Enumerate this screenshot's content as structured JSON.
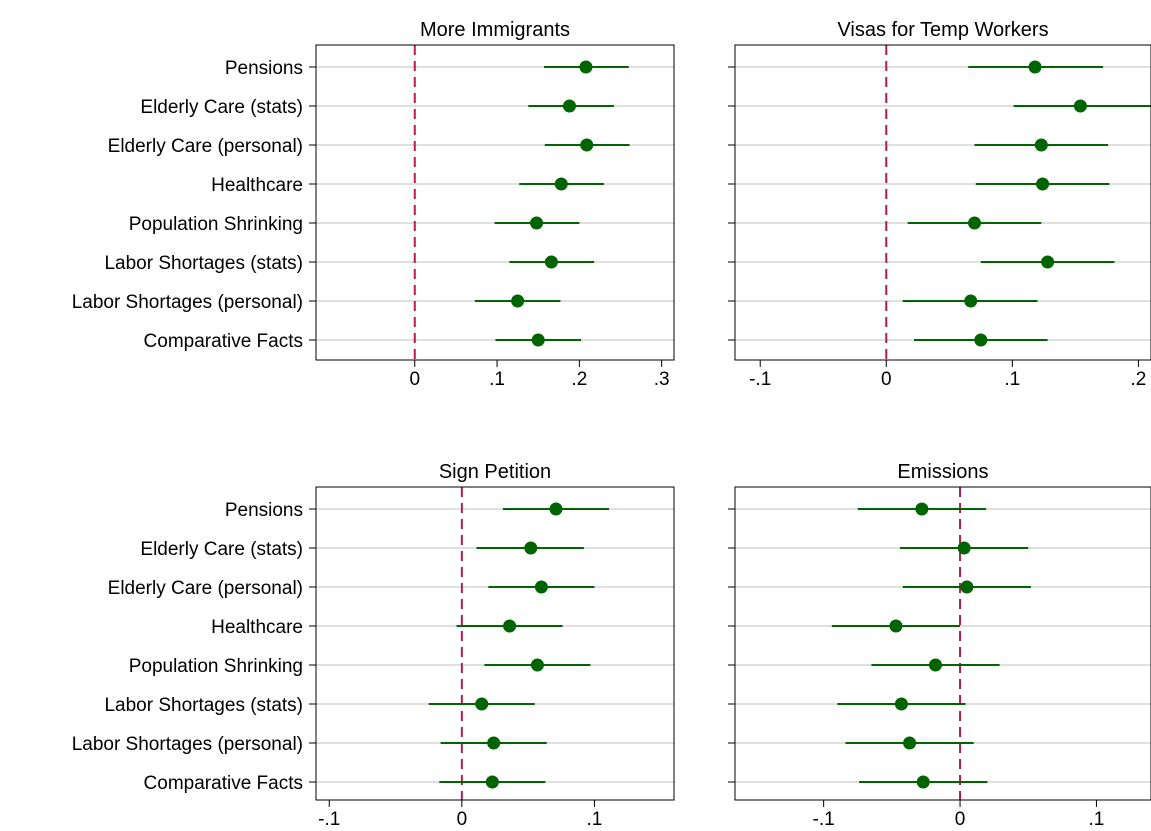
{
  "chart_data": {
    "type": "scatter",
    "categories": [
      "Pensions",
      "Elderly Care (stats)",
      "Elderly Care (personal)",
      "Healthcare",
      "Population Shrinking",
      "Labor Shortages (stats)",
      "Labor Shortages (personal)",
      "Comparative Facts"
    ],
    "colors": {
      "point": "#006400",
      "ci": "#006400",
      "reference_line": "#b01e4e",
      "grid": "#e0e0e0"
    },
    "panels": [
      {
        "title": "More Immigrants",
        "xlim": [
          -0.12,
          0.315
        ],
        "xticks": [
          0,
          0.1,
          0.2,
          0.3
        ],
        "xtick_labels": [
          "0",
          ".1",
          ".2",
          ".3"
        ],
        "show_category_labels": true,
        "estimates": [
          0.208,
          0.188,
          0.209,
          0.178,
          0.148,
          0.166,
          0.125,
          0.15
        ],
        "ci_low": [
          0.157,
          0.138,
          0.158,
          0.127,
          0.097,
          0.115,
          0.073,
          0.098
        ],
        "ci_high": [
          0.26,
          0.242,
          0.261,
          0.23,
          0.2,
          0.218,
          0.177,
          0.202
        ]
      },
      {
        "title": "Visas for Temp Workers",
        "xlim": [
          -0.12,
          0.21
        ],
        "xticks": [
          -0.1,
          0,
          0.1,
          0.2
        ],
        "xtick_labels": [
          "-.1",
          "0",
          ".1",
          ".2"
        ],
        "show_category_labels": false,
        "estimates": [
          0.118,
          0.154,
          0.123,
          0.124,
          0.07,
          0.128,
          0.067,
          0.075
        ],
        "ci_low": [
          0.065,
          0.101,
          0.07,
          0.071,
          0.017,
          0.075,
          0.013,
          0.022
        ],
        "ci_high": [
          0.172,
          0.21,
          0.176,
          0.177,
          0.123,
          0.181,
          0.12,
          0.128
        ]
      },
      {
        "title": "Sign Petition",
        "xlim": [
          -0.11,
          0.16
        ],
        "xticks": [
          -0.1,
          0,
          0.1
        ],
        "xtick_labels": [
          "-.1",
          "0",
          ".1"
        ],
        "show_category_labels": true,
        "estimates": [
          0.071,
          0.052,
          0.06,
          0.036,
          0.057,
          0.015,
          0.024,
          0.023
        ],
        "ci_low": [
          0.031,
          0.011,
          0.02,
          -0.004,
          0.017,
          -0.025,
          -0.016,
          -0.017
        ],
        "ci_high": [
          0.111,
          0.092,
          0.1,
          0.076,
          0.097,
          0.055,
          0.064,
          0.063
        ]
      },
      {
        "title": "Emissions",
        "xlim": [
          -0.165,
          0.14
        ],
        "xticks": [
          -0.1,
          0,
          0.1
        ],
        "xtick_labels": [
          "-.1",
          "0",
          ".1"
        ],
        "show_category_labels": false,
        "estimates": [
          -0.028,
          0.003,
          0.005,
          -0.047,
          -0.018,
          -0.043,
          -0.037,
          -0.027
        ],
        "ci_low": [
          -0.075,
          -0.044,
          -0.042,
          -0.094,
          -0.065,
          -0.09,
          -0.084,
          -0.074
        ],
        "ci_high": [
          0.019,
          0.05,
          0.052,
          0.0,
          0.029,
          0.004,
          0.01,
          0.02
        ]
      }
    ]
  }
}
